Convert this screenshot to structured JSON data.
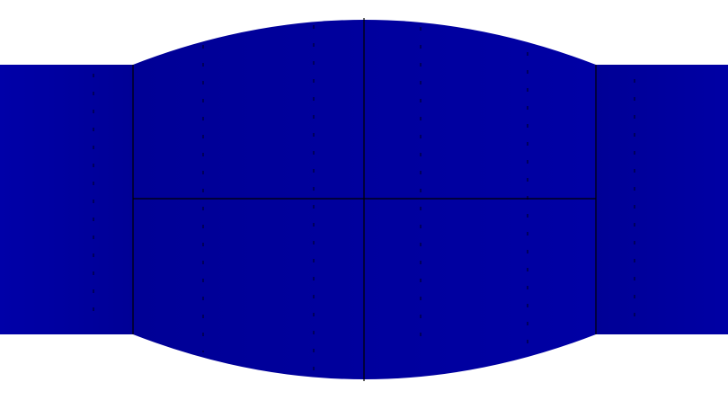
{
  "colors": {
    "background": "#ffffff",
    "fill_left": "#0000a8",
    "fill_center": "#000096",
    "fill_right": "#0000a4",
    "edge": "#000000",
    "hatch": "#000032"
  }
}
